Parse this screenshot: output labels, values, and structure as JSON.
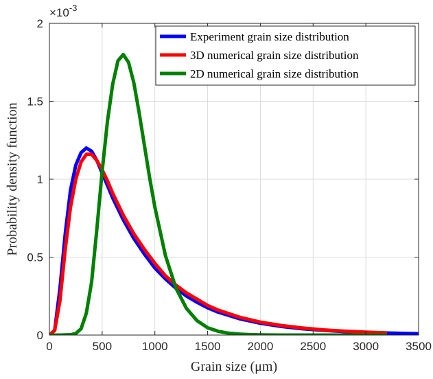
{
  "chart_data": {
    "type": "line",
    "xlabel": "Grain size (μm)",
    "ylabel": "Probability density function",
    "y_exponent_label": "×10",
    "y_exponent_power": "-3",
    "xlim": [
      0,
      3500
    ],
    "ylim": [
      0,
      0.002
    ],
    "grid": true,
    "legend_position": "top-right",
    "x_ticks": [
      0,
      500,
      1000,
      1500,
      2000,
      2500,
      3000,
      3500
    ],
    "x_tick_labels": [
      "0",
      "500",
      "1000",
      "1500",
      "2000",
      "2500",
      "3000",
      "3500"
    ],
    "y_ticks": [
      0,
      0.0005,
      0.001,
      0.0015,
      0.002
    ],
    "y_tick_labels": [
      "0",
      "0.5",
      "1",
      "1.5",
      "2"
    ],
    "series": [
      {
        "name": "Experiment grain size distribution",
        "color": "#0000ff",
        "x": [
          0,
          50,
          100,
          150,
          200,
          250,
          300,
          350,
          400,
          450,
          500,
          550,
          600,
          700,
          800,
          900,
          1000,
          1100,
          1200,
          1300,
          1400,
          1500,
          1600,
          1800,
          2000,
          2200,
          2400,
          2600,
          2800,
          3000,
          3200,
          3500
        ],
        "y": [
          0,
          3e-05,
          0.0003,
          0.00065,
          0.00093,
          0.00109,
          0.00117,
          0.0012,
          0.00118,
          0.00112,
          0.00104,
          0.00096,
          0.00088,
          0.00074,
          0.00062,
          0.00052,
          0.00043,
          0.00036,
          0.0003,
          0.00025,
          0.00021,
          0.000175,
          0.000147,
          0.000105,
          7.6e-05,
          5.5e-05,
          4e-05,
          3e-05,
          2.2e-05,
          1.7e-05,
          1.3e-05,
          9e-06
        ]
      },
      {
        "name": "3D numerical grain size distribution",
        "color": "#ff0000",
        "x": [
          0,
          50,
          100,
          150,
          200,
          250,
          300,
          350,
          400,
          450,
          500,
          550,
          600,
          700,
          800,
          900,
          1000,
          1100,
          1200,
          1300,
          1400,
          1500,
          1600,
          1800,
          2000,
          2200,
          2400,
          2600,
          2800,
          3000,
          3200
        ],
        "y": [
          0,
          3e-05,
          0.00022,
          0.00055,
          0.00082,
          0.001,
          0.00111,
          0.00116,
          0.00116,
          0.00112,
          0.00106,
          0.00099,
          0.00091,
          0.00077,
          0.00065,
          0.00055,
          0.00046,
          0.00038,
          0.00032,
          0.00027,
          0.00023,
          0.00019,
          0.00016,
          0.000115,
          8.3e-05,
          6.1e-05,
          4.5e-05,
          3.3e-05,
          2.5e-05,
          1.9e-05,
          1.4e-05
        ]
      },
      {
        "name": "2D numerical grain size distribution",
        "color": "#008000",
        "x": [
          0,
          100,
          200,
          250,
          300,
          350,
          400,
          450,
          500,
          550,
          600,
          650,
          700,
          750,
          800,
          850,
          900,
          950,
          1000,
          1100,
          1200,
          1300,
          1400,
          1500,
          1600,
          1700,
          1800,
          1900,
          2000,
          2200,
          2500,
          3000,
          3200
        ],
        "y": [
          0,
          0,
          2e-06,
          1e-05,
          4e-05,
          0.00014,
          0.00034,
          0.00068,
          0.00105,
          0.00137,
          0.00161,
          0.00176,
          0.0018,
          0.00175,
          0.00162,
          0.00143,
          0.00122,
          0.00101,
          0.00082,
          0.00051,
          0.0003,
          0.00017,
          9.2e-05,
          4.7e-05,
          2.4e-05,
          1.2e-05,
          6e-06,
          3e-06,
          1e-06,
          0,
          0,
          0,
          0
        ]
      }
    ]
  }
}
